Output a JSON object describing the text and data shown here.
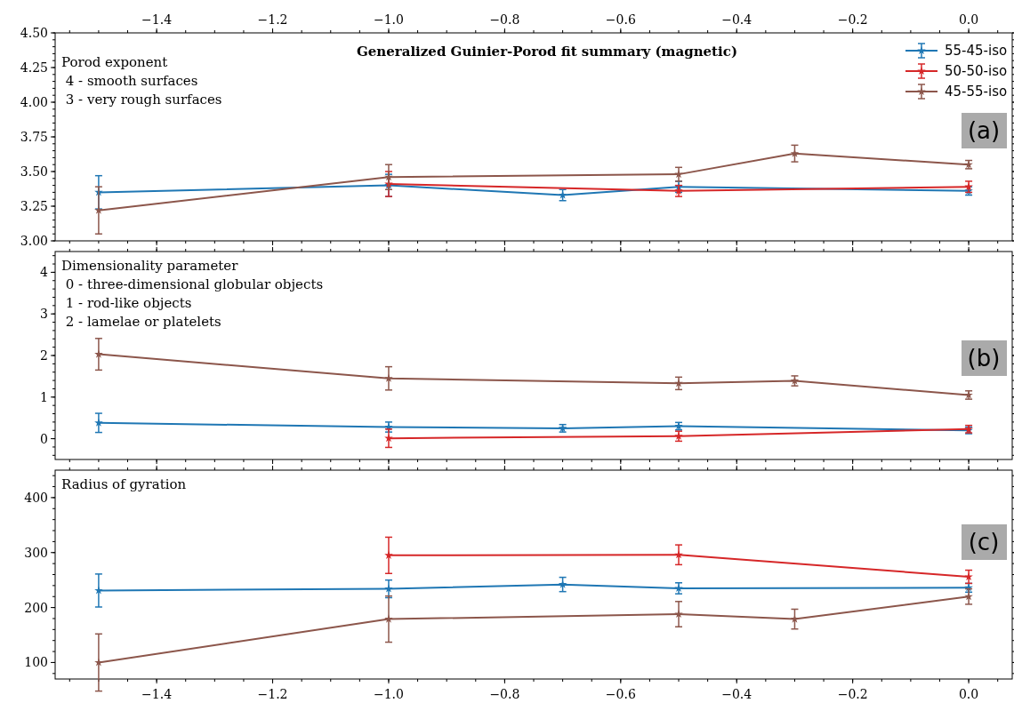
{
  "chart_data": [
    {
      "type": "line",
      "title": "Generalized Guinier-Porod fit summary (magnetic)",
      "annotations": [
        "Porod exponent",
        " 4 - smooth surfaces",
        " 3 - very rough surfaces",
        "(a)"
      ],
      "xlim": [
        -1.575,
        0.075
      ],
      "xticks": [
        {
          "value": -1.4,
          "label": "−1.4"
        },
        {
          "value": -1.2,
          "label": "−1.2"
        },
        {
          "value": -1.0,
          "label": "−1.0"
        },
        {
          "value": -0.8,
          "label": "−0.8"
        },
        {
          "value": -0.6,
          "label": "−0.6"
        },
        {
          "value": -0.4,
          "label": "−0.4"
        },
        {
          "value": -0.2,
          "label": "−0.2"
        },
        {
          "value": 0,
          "label": "0.0"
        }
      ],
      "ylim": [
        3.0,
        4.5
      ],
      "yticks": [
        {
          "value": 3,
          "label": "3.00"
        },
        {
          "value": 3.25,
          "label": "3.25"
        },
        {
          "value": 3.5,
          "label": "3.50"
        },
        {
          "value": 3.75,
          "label": "3.75"
        },
        {
          "value": 4,
          "label": "4.00"
        },
        {
          "value": 4.25,
          "label": "4.25"
        },
        {
          "value": 4.5,
          "label": "4.50"
        }
      ],
      "legend": "top right",
      "marker": "star",
      "grid": false,
      "series": [
        {
          "name": "55-45-iso",
          "color": "#1f77b4",
          "x": [
            -1.5,
            -1.0,
            -0.7,
            -0.5,
            0
          ],
          "values": [
            3.35,
            3.4,
            3.33,
            3.39,
            3.36
          ],
          "errors": [
            0.12,
            0.08,
            0.04,
            0.04,
            0.03
          ]
        },
        {
          "name": "50-50-iso",
          "color": "#d62728",
          "x": [
            -1.0,
            -0.5,
            0
          ],
          "values": [
            3.41,
            3.36,
            3.39
          ],
          "errors": [
            0.09,
            0.04,
            0.04
          ]
        },
        {
          "name": "45-55-iso",
          "color": "#8c564b",
          "x": [
            -1.5,
            -1.0,
            -0.5,
            -0.3,
            0
          ],
          "values": [
            3.22,
            3.46,
            3.48,
            3.63,
            3.55
          ],
          "errors": [
            0.17,
            0.09,
            0.05,
            0.06,
            0.03
          ]
        }
      ]
    },
    {
      "type": "line",
      "annotations": [
        "Dimensionality parameter",
        " 0 - three-dimensional globular objects",
        " 1 - rod-like objects",
        " 2 - lamelae or platelets",
        "(b)"
      ],
      "xlim": [
        -1.575,
        0.075
      ],
      "xticks": [
        -1.4,
        -1.2,
        -1.0,
        -0.8,
        -0.6,
        -0.4,
        -0.2,
        0
      ],
      "tick_labels": "y",
      "ylim": [
        -0.5,
        4.5
      ],
      "yticks": [
        0,
        1,
        2,
        3,
        4
      ],
      "marker": "star",
      "grid": false,
      "series": [
        {
          "color": "#1f77b4",
          "x": [
            -1.5,
            -1.0,
            -0.7,
            -0.5,
            0
          ],
          "values": [
            0.38,
            0.28,
            0.25,
            0.3,
            0.2
          ],
          "errors": [
            0.23,
            0.12,
            0.09,
            0.09,
            0.08
          ]
        },
        {
          "color": "#d62728",
          "x": [
            -1.0,
            -0.5,
            0
          ],
          "values": [
            0.01,
            0.06,
            0.23
          ],
          "errors": [
            0.22,
            0.12,
            0.09
          ]
        },
        {
          "color": "#8c564b",
          "x": [
            -1.5,
            -1.0,
            -0.5,
            -0.3,
            0
          ],
          "values": [
            2.03,
            1.45,
            1.33,
            1.39,
            1.05
          ],
          "errors": [
            0.38,
            0.28,
            0.15,
            0.12,
            0.1
          ]
        }
      ]
    },
    {
      "type": "line",
      "annotations": [
        "Radius of gyration",
        "(c)"
      ],
      "xlim": [
        -1.575,
        0.075
      ],
      "xticks": [
        {
          "value": -1.4,
          "label": "−1.4"
        },
        {
          "value": -1.2,
          "label": "−1.2"
        },
        {
          "value": -1.0,
          "label": "−1.0"
        },
        {
          "value": -0.8,
          "label": "−0.8"
        },
        {
          "value": -0.6,
          "label": "−0.6"
        },
        {
          "value": -0.4,
          "label": "−0.4"
        },
        {
          "value": -0.2,
          "label": "−0.2"
        },
        {
          "value": 0,
          "label": "0.0"
        }
      ],
      "ylim": [
        70,
        450
      ],
      "yticks": [
        100,
        200,
        300,
        400
      ],
      "marker": "star",
      "grid": false,
      "series": [
        {
          "color": "#1f77b4",
          "x": [
            -1.5,
            -1.0,
            -0.7,
            -0.5,
            0
          ],
          "values": [
            231,
            234,
            242,
            235,
            236
          ],
          "errors": [
            30,
            16,
            13,
            10,
            8
          ]
        },
        {
          "color": "#d62728",
          "x": [
            -1.0,
            -0.5,
            0
          ],
          "values": [
            295,
            296,
            256
          ],
          "errors": [
            33,
            18,
            12
          ]
        },
        {
          "color": "#8c564b",
          "x": [
            -1.5,
            -1.0,
            -0.5,
            -0.3,
            0
          ],
          "values": [
            100,
            179,
            188,
            179,
            220
          ],
          "errors": [
            52,
            42,
            23,
            18,
            14
          ]
        }
      ]
    }
  ]
}
